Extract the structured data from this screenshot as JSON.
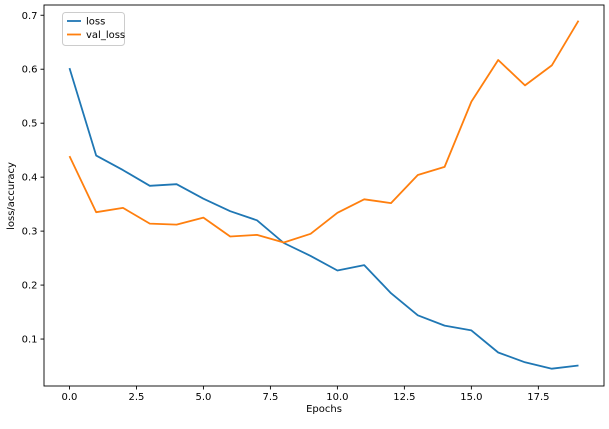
{
  "figure": {
    "background": "#ffffff",
    "axes_edge_color": "#000000"
  },
  "legend": {
    "position": "upper left",
    "entries": [
      {
        "label": "loss",
        "color": "#1f77b4"
      },
      {
        "label": "val_loss",
        "color": "#ff7f0e"
      }
    ]
  },
  "chart_data": {
    "type": "line",
    "title": "",
    "xlabel": "Epochs",
    "ylabel": "loss/accuracy",
    "x": [
      0,
      1,
      2,
      3,
      4,
      5,
      6,
      7,
      8,
      9,
      10,
      11,
      12,
      13,
      14,
      15,
      16,
      17,
      18,
      19
    ],
    "series": [
      {
        "name": "loss",
        "color": "#1f77b4",
        "values": [
          0.602,
          0.44,
          0.413,
          0.384,
          0.387,
          0.36,
          0.337,
          0.32,
          0.278,
          0.254,
          0.227,
          0.237,
          0.185,
          0.144,
          0.125,
          0.116,
          0.075,
          0.057,
          0.045,
          0.051
        ]
      },
      {
        "name": "val_loss",
        "color": "#ff7f0e",
        "values": [
          0.439,
          0.335,
          0.343,
          0.314,
          0.312,
          0.325,
          0.29,
          0.293,
          0.279,
          0.295,
          0.334,
          0.359,
          0.352,
          0.404,
          0.419,
          0.54,
          0.617,
          0.57,
          0.607,
          0.69
        ]
      }
    ],
    "xlim": [
      -0.95,
      19.95
    ],
    "ylim": [
      0.013,
      0.719
    ],
    "xticks": [
      0,
      2.5,
      5,
      7.5,
      10,
      12.5,
      15,
      17.5
    ],
    "xtick_labels": [
      "0.0",
      "2.5",
      "5.0",
      "7.5",
      "10.0",
      "12.5",
      "15.0",
      "17.5"
    ],
    "yticks": [
      0.1,
      0.2,
      0.3,
      0.4,
      0.5,
      0.6,
      0.7
    ],
    "ytick_labels": [
      "0.1",
      "0.2",
      "0.3",
      "0.4",
      "0.5",
      "0.6",
      "0.7"
    ],
    "grid": false,
    "legend_position": "upper left",
    "line_width": 1.8
  }
}
